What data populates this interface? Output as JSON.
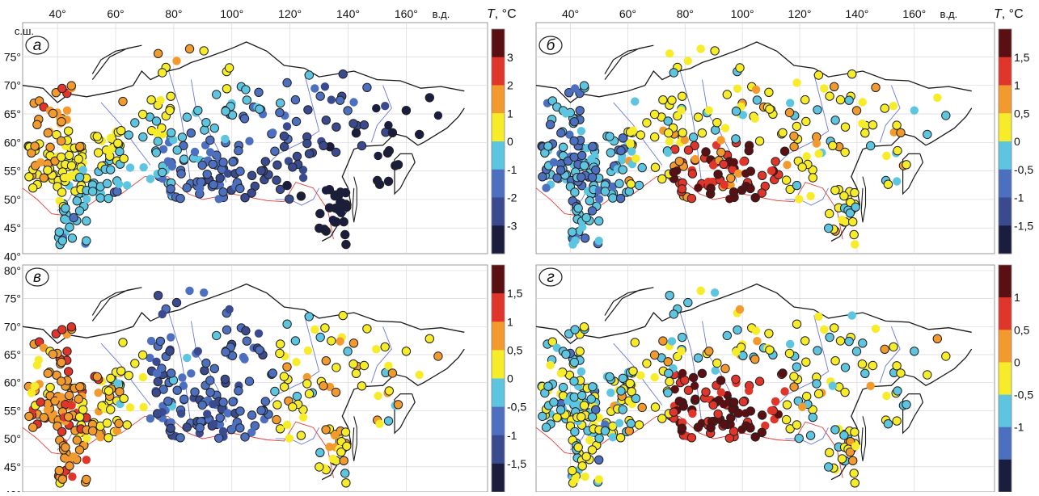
{
  "unit_label": {
    "var": "T",
    "unit": ", °C"
  },
  "lon_labels": [
    "40°",
    "60°",
    "80°",
    "100°",
    "120°",
    "140°",
    "160°",
    "в.д."
  ],
  "lon_values": [
    40,
    60,
    80,
    100,
    120,
    140,
    160
  ],
  "lat_labels": [
    "80°",
    "75°",
    "70°",
    "65°",
    "60°",
    "55°",
    "50°",
    "45°",
    "40°"
  ],
  "lat_values": [
    80,
    75,
    70,
    65,
    60,
    55,
    50,
    45,
    40
  ],
  "lat_north_label": "с.ш.",
  "colors": {
    "dark_red": "#5a0f12",
    "red": "#e0352a",
    "orange": "#f39a2e",
    "yellow": "#f7ec2a",
    "cyan": "#5ec5e0",
    "blue": "#4d6fc0",
    "steel": "#3a4a8f",
    "navy": "#1a1d3e",
    "coast": "#1a1a1a",
    "river": "#6a78d8",
    "border": "#e04040"
  },
  "panels": [
    {
      "id": "a",
      "letter": "а",
      "colorbar_ticks": [
        "3",
        "2",
        "1",
        "0",
        "-1",
        "-2",
        "-3"
      ],
      "colorbar_colors": [
        "#5a0f12",
        "#e0352a",
        "#f39a2e",
        "#f7ec2a",
        "#5ec5e0",
        "#4d6fc0",
        "#3a4a8f",
        "#1a1d3e"
      ]
    },
    {
      "id": "b",
      "letter": "б",
      "colorbar_ticks": [
        "1,5",
        "1",
        "0,5",
        "0",
        "-0,5",
        "-1",
        "-1,5"
      ],
      "colorbar_colors": [
        "#5a0f12",
        "#e0352a",
        "#f39a2e",
        "#f7ec2a",
        "#5ec5e0",
        "#4d6fc0",
        "#3a4a8f",
        "#1a1d3e"
      ]
    },
    {
      "id": "v",
      "letter": "в",
      "colorbar_ticks": [
        "1,5",
        "1",
        "0,5",
        "0",
        "-0,5",
        "-1",
        "-1,5"
      ],
      "colorbar_colors": [
        "#5a0f12",
        "#e0352a",
        "#f39a2e",
        "#f7ec2a",
        "#5ec5e0",
        "#4d6fc0",
        "#3a4a8f",
        "#1a1d3e"
      ]
    },
    {
      "id": "g",
      "letter": "г",
      "colorbar_ticks": [
        "1",
        "0,5",
        "0",
        "-0,5",
        "-1"
      ],
      "colorbar_colors": [
        "#5a0f12",
        "#e0352a",
        "#f39a2e",
        "#f7ec2a",
        "#5ec5e0",
        "#4d6fc0",
        "#1a1d3e"
      ]
    }
  ]
}
